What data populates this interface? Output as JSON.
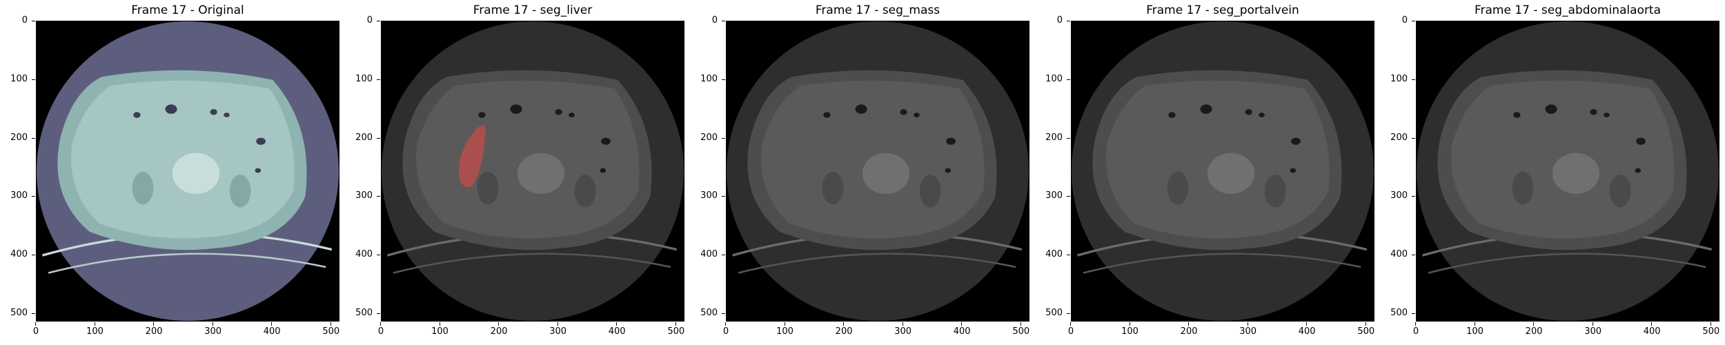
{
  "panels": [
    {
      "title": "Frame 17 - Original",
      "variant": "original"
    },
    {
      "title": "Frame 17 - seg_liver",
      "variant": "liver"
    },
    {
      "title": "Frame 17 - seg_mass",
      "variant": "plain"
    },
    {
      "title": "Frame 17 - seg_portalvein",
      "variant": "plain"
    },
    {
      "title": "Frame 17 - seg_abdominalaorta",
      "variant": "plain"
    }
  ],
  "axes": {
    "yticks": [
      "0",
      "100",
      "200",
      "300",
      "400",
      "500"
    ],
    "xticks": [
      "0",
      "100",
      "200",
      "300",
      "400",
      "500"
    ],
    "yvalues": [
      0,
      100,
      200,
      300,
      400,
      500
    ],
    "xvalues": [
      0,
      100,
      200,
      300,
      400,
      500
    ],
    "extent": 512
  },
  "colors": {
    "original_bg": "#5d5e7d",
    "original_body": "#a6c6c3",
    "gray_bg": "#2e2e2e",
    "gray_body": "#5a5a5a",
    "liver_overlay": "#b84c4c"
  }
}
